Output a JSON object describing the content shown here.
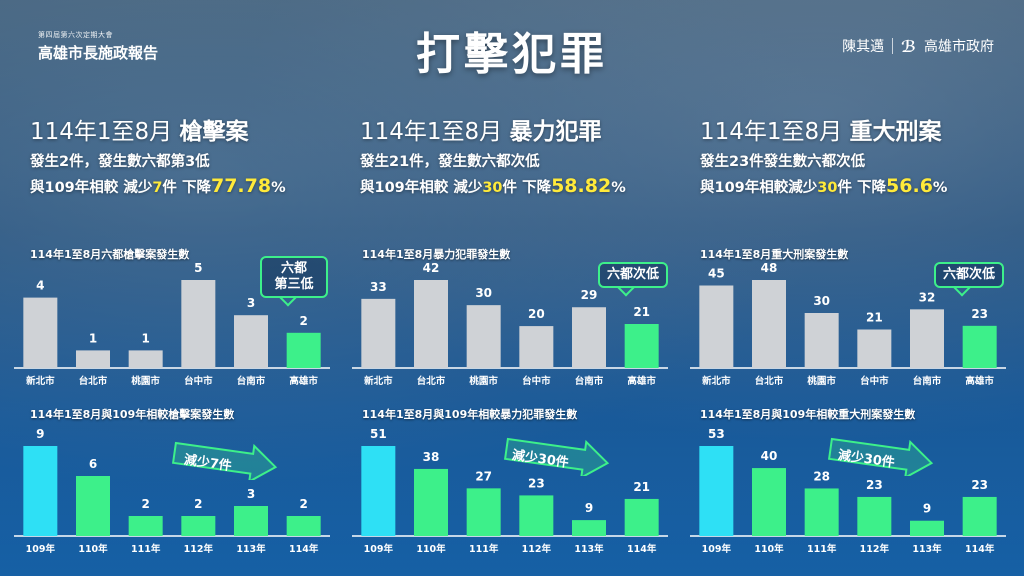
{
  "header": {
    "subtitle_small": "第四屆第六次定期大會",
    "subtitle_big": "高雄市長施政報告",
    "main_title": "打擊犯罪",
    "mayor": "陳其邁",
    "gov": "高雄市政府"
  },
  "columns": [
    {
      "period": "114年1至8月",
      "category": "槍擊案",
      "line1": "發生2件，發生數六都第3低",
      "line2_pre": "與109年相較 減少",
      "line2_num": "7",
      "line2_mid": "件 下降",
      "line2_pct": "77.78",
      "line2_pct_unit": "%",
      "callout": "六都\n第三低",
      "trend_label": "減少7件"
    },
    {
      "period": "114年1至8月",
      "category": "暴力犯罪",
      "line1": "發生21件，發生數六都次低",
      "line2_pre": "與109年相較 減少",
      "line2_num": "30",
      "line2_mid": "件 下降",
      "line2_pct": "58.82",
      "line2_pct_unit": "%",
      "callout": "六都次低",
      "trend_label": "減少30件"
    },
    {
      "period": "114年1至8月",
      "category": "重大刑案",
      "line1": "發生23件發生數六都次低",
      "line2_pre": "與109年相較減少",
      "line2_num": "30",
      "line2_mid": "件 下降",
      "line2_pct": "56.6",
      "line2_pct_unit": "%",
      "callout": "六都次低",
      "trend_label": "減少30件"
    }
  ],
  "colors": {
    "gray_bar": "#cfd2d6",
    "green_bar": "#3df08a",
    "cyan_bar": "#2ee0f5",
    "highlight": "#ffea3a"
  },
  "chart_data": [
    {
      "type": "bar",
      "title": "114年1至8月六都槍擊案發生數",
      "categories": [
        "新北市",
        "台北市",
        "桃園市",
        "台中市",
        "台南市",
        "高雄市"
      ],
      "values": [
        4,
        1,
        1,
        5,
        3,
        2
      ],
      "highlight_index": 5
    },
    {
      "type": "bar",
      "title": "114年1至8月暴力犯罪發生數",
      "categories": [
        "新北市",
        "台北市",
        "桃園市",
        "台中市",
        "台南市",
        "高雄市"
      ],
      "values": [
        33,
        42,
        30,
        20,
        29,
        21
      ],
      "highlight_index": 5
    },
    {
      "type": "bar",
      "title": "114年1至8月重大刑案發生數",
      "categories": [
        "新北市",
        "台北市",
        "桃園市",
        "台中市",
        "台南市",
        "高雄市"
      ],
      "values": [
        45,
        48,
        30,
        21,
        32,
        23
      ],
      "highlight_index": 5
    },
    {
      "type": "bar",
      "title": "114年1至8月與109年相較槍擊案發生數",
      "categories": [
        "109年",
        "110年",
        "111年",
        "112年",
        "113年",
        "114年"
      ],
      "values": [
        9,
        6,
        2,
        2,
        3,
        2
      ]
    },
    {
      "type": "bar",
      "title": "114年1至8月與109年相較暴力犯罪發生數",
      "categories": [
        "109年",
        "110年",
        "111年",
        "112年",
        "113年",
        "114年"
      ],
      "values": [
        51,
        38,
        27,
        23,
        9,
        21
      ]
    },
    {
      "type": "bar",
      "title": "114年1至8月與109年相較重大刑案發生數",
      "categories": [
        "109年",
        "110年",
        "111年",
        "112年",
        "113年",
        "114年"
      ],
      "values": [
        53,
        40,
        28,
        23,
        9,
        23
      ]
    }
  ]
}
